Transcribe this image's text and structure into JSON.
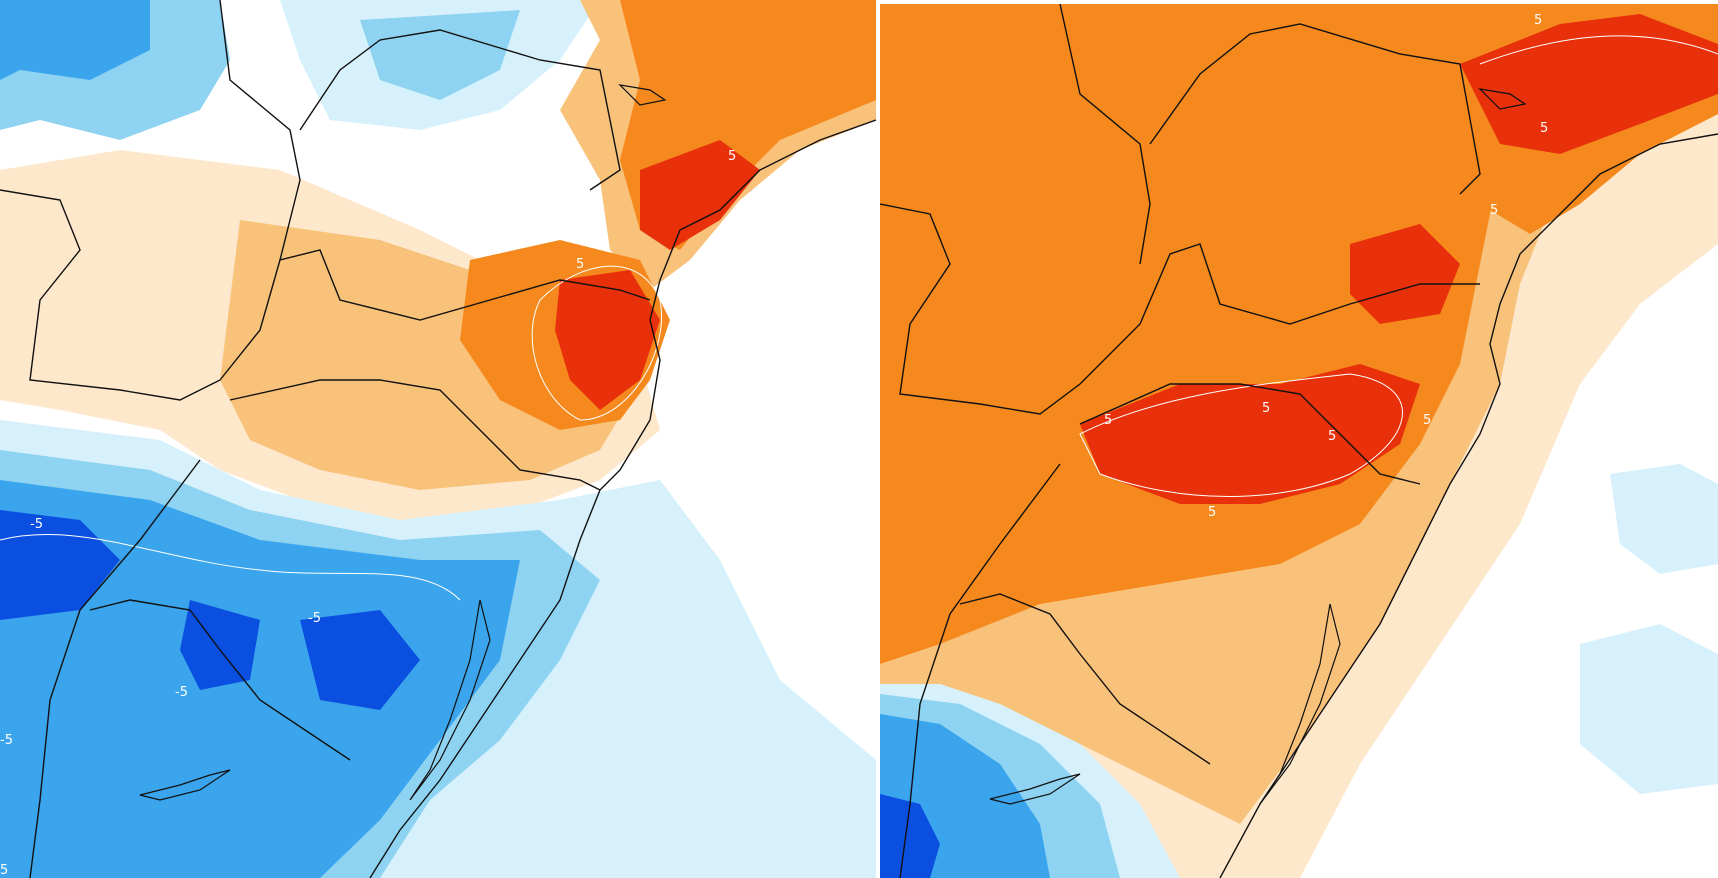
{
  "panels": [
    {
      "id": "left",
      "contour_labels": [
        "5",
        "-5",
        "-5",
        "-5",
        "-5",
        "5",
        "5"
      ]
    },
    {
      "id": "right",
      "contour_labels": [
        "5",
        "5",
        "5",
        "5",
        "5",
        "5",
        "5",
        "5"
      ]
    }
  ],
  "colors": {
    "strong_warm": "#e8300a",
    "warm": "#f5891d",
    "light_warm": "#f9c27a",
    "pale_warm": "#fde8cc",
    "neutral": "#ffffff",
    "pale_cold": "#d6f1fb",
    "light_cold": "#8fd3f2",
    "cold": "#3aa4ec",
    "strong_cold": "#0a4fe0",
    "border_line": "#111111",
    "contour_line": "#ffffff"
  }
}
